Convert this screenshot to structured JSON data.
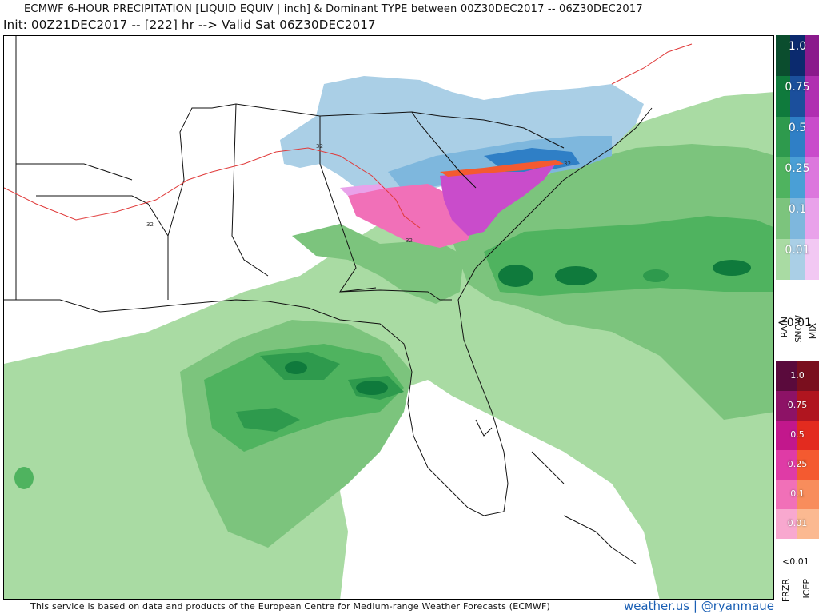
{
  "header": {
    "title_line1": "ECMWF 6-HOUR PRECIPITATION [LIQUID EQUIV | inch] & Dominant TYPE between 00Z30DEC2017 -- 06Z30DEC2017",
    "title_line2": "Init: 00Z21DEC2017 -- [222] hr --> Valid Sat 06Z30DEC2017"
  },
  "footer": {
    "credit": "This service is based on data and products of the European Centre for Medium-range Weather Forecasts (ECMWF)",
    "brand": "weather.us | @ryanmaue"
  },
  "map": {
    "isotherm_label": "32"
  },
  "legend_top": {
    "levels": [
      "1.0",
      "0.75",
      "0.5",
      "0.25",
      "0.1",
      "0.01"
    ],
    "below_label": "<0.01",
    "type_labels": [
      "RAIN",
      "SNOW",
      "MIX"
    ],
    "colors": {
      "rain": [
        "#0b4d2e",
        "#0f7a3c",
        "#2e9a4d",
        "#4fb35f",
        "#7cc47d",
        "#a9dba3"
      ],
      "snow": [
        "#0b2a6e",
        "#1b4f9c",
        "#2f7fc6",
        "#4a9fd6",
        "#7eb7dd",
        "#aacfe6"
      ],
      "mix": [
        "#8a1a8c",
        "#b02fb1",
        "#c94ccb",
        "#dc77dd",
        "#e9a2ea",
        "#f2c8f3"
      ]
    }
  },
  "legend_bottom": {
    "levels": [
      "1.0",
      "0.75",
      "0.5",
      "0.25",
      "0.1",
      "0.01"
    ],
    "below_label": "<0.01",
    "type_labels": [
      "FRZR",
      "ICEP"
    ],
    "colors": {
      "frzr": [
        "#5a0a3c",
        "#8d1266",
        "#c2178c",
        "#df3ba6",
        "#f170b8",
        "#f8a8cf"
      ],
      "icep": [
        "#7a0f1e",
        "#b0151f",
        "#e32b1f",
        "#f45a30",
        "#f88d5c",
        "#fbb991"
      ]
    }
  }
}
